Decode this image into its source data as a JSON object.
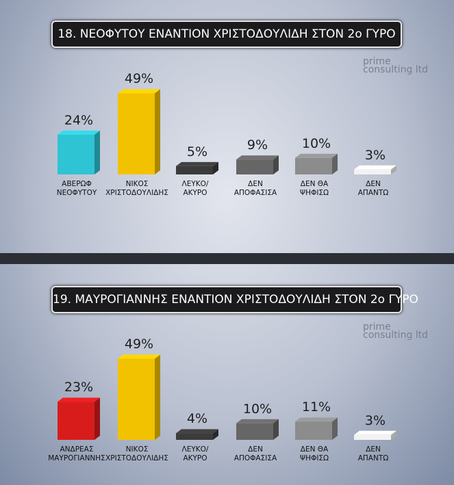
{
  "chart_data": [
    {
      "type": "bar",
      "title": "18. ΝΕΟΦΥΤΟΥ ΕΝΑΝΤΙΟΝ ΧΡΙΣΤΟΔΟΥΛΙΔΗ ΣΤΟΝ 2ο ΓΥΡΟ",
      "watermark": "prime\nconsulting ltd",
      "categories": [
        "ΑΒΕΡΩΦ\nΝΕΟΦΥΤΟΥ",
        "ΝΙΚΟΣ\nΧΡΙΣΤΟΔΟΥΛΙΔΗΣ",
        "ΛΕΥΚΟ/\nΑΚΥΡΟ",
        "ΔΕΝ\nΑΠΟΦΑΣΙΣΑ",
        "ΔΕΝ ΘΑ\nΨΗΦΙΣΩ",
        "ΔΕΝ\nΑΠΑΝΤΩ"
      ],
      "values": [
        24,
        49,
        5,
        9,
        10,
        3
      ],
      "value_labels": [
        "24%",
        "49%",
        "5%",
        "9%",
        "10%",
        "3%"
      ],
      "colors": [
        "#2ec4d4",
        "#f2c200",
        "#3b3b3b",
        "#666666",
        "#8c8c8c",
        "#f2f2f2"
      ]
    },
    {
      "type": "bar",
      "title": "19. ΜΑΥΡΟΓΙΑΝΝΗΣ ΕΝΑΝΤΙΟΝ ΧΡΙΣΤΟΔΟΥΛΙΔΗ ΣΤΟΝ 2ο ΓΥΡΟ",
      "watermark": "prime\nconsulting ltd",
      "categories": [
        "ΑΝΔΡΕΑΣ\nΜΑΥΡΟΓΙΑΝΝΗΣ",
        "ΝΙΚΟΣ\nΧΡΙΣΤΟΔΟΥΛΙΔΗΣ",
        "ΛΕΥΚΟ/\nΑΚΥΡΟ",
        "ΔΕΝ\nΑΠΟΦΑΣΙΣΑ",
        "ΔΕΝ ΘΑ\nΨΗΦΙΣΩ",
        "ΔΕΝ\nΑΠΑΝΤΩ"
      ],
      "values": [
        23,
        49,
        4,
        10,
        11,
        3
      ],
      "value_labels": [
        "23%",
        "49%",
        "4%",
        "10%",
        "11%",
        "3%"
      ],
      "colors": [
        "#d81c1c",
        "#f2c200",
        "#3b3b3b",
        "#666666",
        "#8c8c8c",
        "#f2f2f2"
      ]
    }
  ]
}
